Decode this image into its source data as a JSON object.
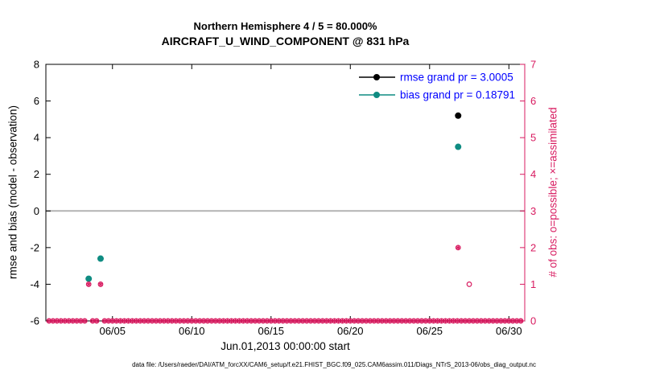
{
  "figure": {
    "caption": "data file: /Users/raeder/DAI/ATM_forcXX/CAM6_setup/f.e21.FHIST_BGC.f09_025.CAM6assim.011/Diags_NTrS_2013-06/obs_diag_output.nc"
  },
  "chart_data": {
    "type": "scatter",
    "title": "Northern Hemisphere 4 / 5 = 80.000%",
    "subtitle": "AIRCRAFT_U_WIND_COMPONENT @ 831 hPa",
    "xlabel": "Jun.01,2013 00:00:00 start",
    "ylabel_left": "rmse and bias (model - observation)",
    "ylabel_right": "# of obs: o=possible; ×=assimilated",
    "grid": "off",
    "legend_position": "top-right-inside",
    "xlim_days": [
      0.8,
      31.0
    ],
    "xticks": [
      {
        "day": 5,
        "label": "06/05"
      },
      {
        "day": 10,
        "label": "06/10"
      },
      {
        "day": 15,
        "label": "06/15"
      },
      {
        "day": 20,
        "label": "06/20"
      },
      {
        "day": 25,
        "label": "06/25"
      },
      {
        "day": 30,
        "label": "06/30"
      }
    ],
    "ylim_left": [
      -6,
      8
    ],
    "yticks_left": [
      -6,
      -4,
      -2,
      0,
      2,
      4,
      6,
      8
    ],
    "ylim_right": [
      0,
      7
    ],
    "yticks_right": [
      0,
      1,
      2,
      3,
      4,
      5,
      6,
      7
    ],
    "zero_reference_line": 0,
    "legend": [
      {
        "series": "rmse",
        "label": "rmse grand pr = 3.0005",
        "color": "#000000"
      },
      {
        "series": "bias",
        "label": "bias grand pr = 0.18791",
        "color": "#0f8c82"
      }
    ],
    "series": [
      {
        "name": "rmse",
        "axis": "left",
        "marker": "dot",
        "color": "#000000",
        "points": [
          {
            "day": 26.8,
            "value": 5.2
          }
        ]
      },
      {
        "name": "bias",
        "axis": "left",
        "marker": "dot",
        "color": "#0f8c82",
        "points": [
          {
            "day": 3.5,
            "value": -3.7
          },
          {
            "day": 4.25,
            "value": -2.6
          },
          {
            "day": 26.8,
            "value": 3.5
          }
        ]
      },
      {
        "name": "obs-possible",
        "axis": "right",
        "marker": "circle-open",
        "color": "#d81b60",
        "points": [
          {
            "day": 3.5,
            "value": 1
          },
          {
            "day": 4.25,
            "value": 1
          },
          {
            "day": 26.8,
            "value": 2
          },
          {
            "day": 27.5,
            "value": 1
          }
        ]
      },
      {
        "name": "obs-assimilated",
        "axis": "right",
        "marker": "asterisk",
        "color": "#d81b60",
        "points": [
          {
            "day": 3.5,
            "value": 1
          },
          {
            "day": 4.25,
            "value": 1
          },
          {
            "day": 26.8,
            "value": 2
          }
        ]
      }
    ],
    "zero_obs_row": {
      "axis": "right",
      "value": 0,
      "start_day": 1.0,
      "end_day": 30.75,
      "step_days": 0.25,
      "exclude_days": [
        3.5,
        4.25,
        26.8
      ],
      "markers": [
        "circle-open",
        "asterisk"
      ],
      "color": "#d81b60"
    },
    "colors": {
      "obs_axis": "#d81b60",
      "legend_text": "#0000ff",
      "zero_line": "#b3b3b3",
      "axis": "#000000",
      "background": "#ffffff"
    }
  }
}
